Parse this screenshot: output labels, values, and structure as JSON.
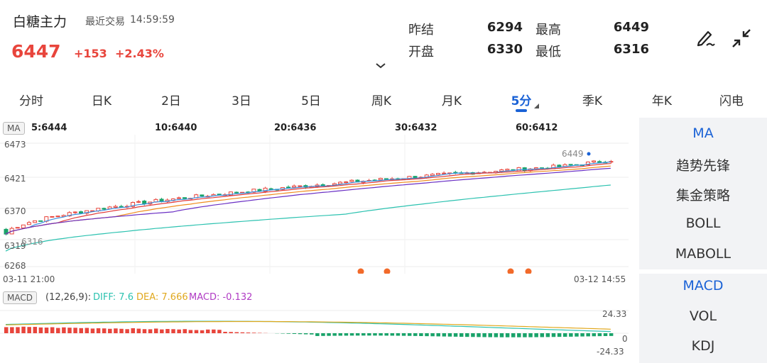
{
  "header": {
    "title": "白糖主力",
    "trade_label": "最近交易",
    "trade_time": "14:59:59",
    "price": "6447",
    "change": "+153",
    "change_pct": "+2.43%",
    "quotes": [
      {
        "label": "昨结",
        "value": "6294"
      },
      {
        "label": "最高",
        "value": "6449"
      },
      {
        "label": "开盘",
        "value": "6330"
      },
      {
        "label": "最低",
        "value": "6316"
      }
    ],
    "icons": [
      "edit-icon",
      "shrink-icon",
      "chevron-down-icon"
    ]
  },
  "tabs": [
    {
      "label": "分时"
    },
    {
      "label": "日K"
    },
    {
      "label": "2日"
    },
    {
      "label": "3日"
    },
    {
      "label": "5日"
    },
    {
      "label": "周K"
    },
    {
      "label": "月K"
    },
    {
      "label": "5分",
      "active": true
    },
    {
      "label": "季K"
    },
    {
      "label": "年K"
    },
    {
      "label": "闪电"
    }
  ],
  "ma_legend": {
    "box": "MA",
    "items": [
      {
        "text": "5:6444",
        "color": "#3b8fe0"
      },
      {
        "text": "10:6440",
        "color": "#e03b3b"
      },
      {
        "text": "20:6436",
        "color": "#f08c1e"
      },
      {
        "text": "30:6432",
        "color": "#1f2fb8"
      },
      {
        "text": "60:6412",
        "color": "#2cc2b0"
      }
    ]
  },
  "price_axis": {
    "ticks": [
      "6473",
      "6421",
      "6370",
      "6319",
      "6268"
    ],
    "high_marker": "6449",
    "low_marker": "6316",
    "start_time": "03-11 21:00",
    "end_time": "03-12 14:55"
  },
  "macd_legend": {
    "box": "MACD",
    "params": "(12,26,9):",
    "diff": "DIFF: 7.6",
    "dea": "DEA: 7.666",
    "macd": "MACD: -0.132",
    "diff_color": "#2cc2b0",
    "dea_color": "#e0a81e",
    "macd_color": "#b03bc4"
  },
  "macd_axis": {
    "top": "24.33",
    "zero": "0",
    "bottom": "-24.33"
  },
  "right_panel": {
    "main_indicators": [
      {
        "label": "MA",
        "active": true
      },
      {
        "label": "趋势先锋"
      },
      {
        "label": "集金策略"
      },
      {
        "label": "BOLL"
      },
      {
        "label": "MABOLL"
      }
    ],
    "sub_indicators": [
      {
        "label": "MACD",
        "active": true
      },
      {
        "label": "VOL"
      },
      {
        "label": "KDJ"
      }
    ]
  },
  "colors": {
    "up": "#e8453c",
    "down": "#1aa36a",
    "accent": "#1a62d6"
  }
}
